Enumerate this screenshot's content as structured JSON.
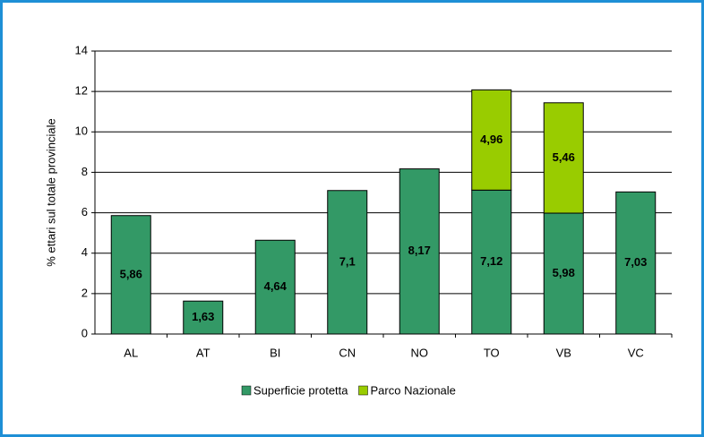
{
  "chart_data": {
    "type": "bar",
    "stacked": true,
    "y_label": "% ettari sul totale provinciale",
    "categories": [
      "AL",
      "AT",
      "BI",
      "CN",
      "NO",
      "TO",
      "VB",
      "VC"
    ],
    "series": [
      {
        "name": "Superficie protetta",
        "color": "#339966",
        "values": [
          5.86,
          1.63,
          4.64,
          7.1,
          8.17,
          7.12,
          5.98,
          7.03
        ],
        "value_labels": [
          "5,86",
          "1,63",
          "4,64",
          "7,1",
          "8,17",
          "7,12",
          "5,98",
          "7,03"
        ]
      },
      {
        "name": "Parco Nazionale",
        "color": "#99cc00",
        "values": [
          null,
          null,
          null,
          null,
          null,
          4.96,
          5.46,
          null
        ],
        "value_labels": [
          null,
          null,
          null,
          null,
          null,
          "4,96",
          "5,46",
          null
        ]
      }
    ],
    "ylim": [
      0,
      14
    ],
    "yticks": [
      0,
      2,
      4,
      6,
      8,
      10,
      12,
      14
    ],
    "grid": true,
    "legend": "bottom"
  }
}
